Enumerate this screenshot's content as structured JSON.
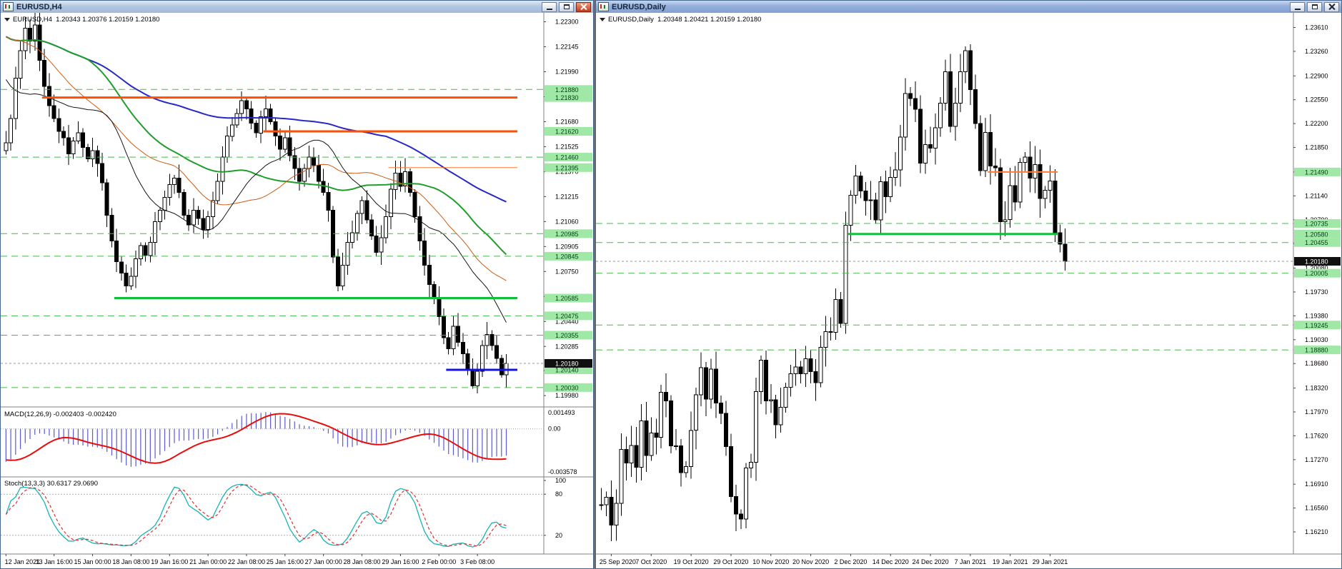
{
  "left_window": {
    "title": "EURUSD,H4",
    "header": "EURUSD,H4  1.20343 1.20376 1.20159 1.20180",
    "macd_label": "MACD(12,26,9) -0.002403 -0.002420",
    "stoch_label": "Stoch(13,3,3) 30.6317 29.0690"
  },
  "right_window": {
    "title": "EURUSD,Daily",
    "header": "EURUSD,Daily  1.20348 1.20421 1.20159 1.20180"
  },
  "colors": {
    "bull_candle": "#ffffff",
    "bear_candle": "#000000",
    "level_dashed_green": "#44bb44",
    "resistance_orange": "#ff4f02",
    "support_green": "#10c03a",
    "support_blue": "#1414e8",
    "badge_green_bg": "#9fe8a5",
    "current_badge_bg": "#101010"
  },
  "chart_data": [
    {
      "type": "candlestick",
      "symbol": "EURUSD",
      "timeframe": "H4",
      "title": "EURUSD,H4",
      "y_max": 1.2232,
      "y_min": 1.19945,
      "wick": 0.0007,
      "current_price": 1.2018,
      "current_label": "1.20180",
      "pre_closes": [
        1.2262,
        1.227,
        1.2277,
        1.2282,
        1.2286,
        1.2288,
        1.2285,
        1.228,
        1.2272,
        1.2265,
        1.2258,
        1.225,
        1.2242,
        1.2235,
        1.2228,
        1.2222,
        1.2215,
        1.2208,
        1.2202,
        1.2196,
        1.219,
        1.2183,
        1.2177,
        1.2172,
        1.2168,
        1.2163,
        1.2158,
        1.2154,
        1.2151,
        1.215
      ],
      "closes": [
        1.2155,
        1.217,
        1.2195,
        1.2212,
        1.2226,
        1.2218,
        1.2228,
        1.2206,
        1.219,
        1.2178,
        1.217,
        1.2162,
        1.2158,
        1.2148,
        1.2156,
        1.2161,
        1.2152,
        1.2145,
        1.215,
        1.2142,
        1.213,
        1.211,
        1.2094,
        1.2081,
        1.2074,
        1.2066,
        1.2072,
        1.2083,
        1.2091,
        1.2085,
        1.2093,
        1.2106,
        1.2113,
        1.2121,
        1.2129,
        1.2133,
        1.2124,
        1.211,
        1.2104,
        1.2113,
        1.2108,
        1.2101,
        1.2109,
        1.2119,
        1.2131,
        1.2146,
        1.2159,
        1.2166,
        1.2173,
        1.2181,
        1.2176,
        1.2167,
        1.2161,
        1.2171,
        1.2176,
        1.2168,
        1.2159,
        1.2151,
        1.2158,
        1.2147,
        1.2139,
        1.2131,
        1.2139,
        1.2146,
        1.2141,
        1.2131,
        1.2124,
        1.2113,
        1.2084,
        1.2066,
        1.2079,
        1.2093,
        1.2099,
        1.2111,
        1.2119,
        1.2107,
        1.2097,
        1.2087,
        1.2096,
        1.2109,
        1.2126,
        1.2136,
        1.2128,
        1.2137,
        1.2124,
        1.2109,
        1.2094,
        1.2079,
        1.2067,
        1.2059,
        1.2047,
        1.2034,
        1.2027,
        1.2041,
        1.2031,
        1.2024,
        1.2014,
        1.2004,
        1.2013,
        1.2029,
        1.2036,
        1.2029,
        1.2021,
        1.2011,
        1.2018
      ],
      "price_labels": [
        "1.22300",
        "1.22145",
        "1.21990",
        "1.21835",
        "1.21680",
        "1.21525",
        "1.21370",
        "1.21215",
        "1.21060",
        "1.20905",
        "1.20750",
        "1.20595",
        "1.20440",
        "1.20285",
        "1.20135",
        "1.19980"
      ],
      "time_labels": [
        {
          "t": "12 Jan 2021",
          "i": 0
        },
        {
          "t": "13 Jan 16:00",
          "i": 10
        },
        {
          "t": "15 Jan 00:00",
          "i": 18
        },
        {
          "t": "18 Jan 08:00",
          "i": 26
        },
        {
          "t": "19 Jan 16:00",
          "i": 34
        },
        {
          "t": "21 Jan 00:00",
          "i": 42
        },
        {
          "t": "22 Jan 08:00",
          "i": 50
        },
        {
          "t": "25 Jan 16:00",
          "i": 58
        },
        {
          "t": "27 Jan 00:00",
          "i": 66
        },
        {
          "t": "28 Jan 08:00",
          "i": 74
        },
        {
          "t": "29 Jan 16:00",
          "i": 82
        },
        {
          "t": "2 Feb 00:00",
          "i": 90
        },
        {
          "t": "3 Feb 08:00",
          "i": 98
        }
      ],
      "levels": [
        {
          "price": 1.2188,
          "style": "dashed",
          "color": "#44bb44",
          "width": 1,
          "full": true,
          "badge": "1.21880"
        },
        {
          "price": 1.2183,
          "style": "solid",
          "color": "#ff4f02",
          "width": 3,
          "from": 8,
          "badge": "1.21830"
        },
        {
          "price": 1.2162,
          "style": "solid",
          "color": "#ff4f02",
          "width": 3,
          "from": 54,
          "badge": "1.21620"
        },
        {
          "price": 1.2146,
          "style": "dashed",
          "color": "#44bb44",
          "width": 1,
          "full": true,
          "badge": "1.21460"
        },
        {
          "price": 1.21395,
          "style": "solid",
          "color": "#ff7b30",
          "width": 1,
          "from": 80,
          "badge": "1.21395"
        },
        {
          "price": 1.20985,
          "style": "dashed",
          "color": "#44bb44",
          "width": 1,
          "full": true,
          "badge": "1.20985"
        },
        {
          "price": 1.20845,
          "style": "dashed",
          "color": "#44bb44",
          "width": 1,
          "full": true,
          "badge": "1.20845"
        },
        {
          "price": 1.20585,
          "style": "solid",
          "color": "#10c03a",
          "width": 3,
          "from": 23,
          "badge": "1.20585"
        },
        {
          "price": 1.20475,
          "style": "dashed",
          "color": "#44bb44",
          "width": 1,
          "full": true,
          "badge": "1.20475"
        },
        {
          "price": 1.20355,
          "style": "dashed",
          "color": "#44bb44",
          "width": 1,
          "full": true,
          "badge": "1.20355"
        },
        {
          "price": 1.2014,
          "style": "solid",
          "color": "#1414e8",
          "width": 3,
          "from": 92,
          "badge": "1.20140"
        },
        {
          "price": 1.2003,
          "style": "dashed",
          "color": "#44bb44",
          "width": 1,
          "full": true,
          "badge": "1.20030"
        }
      ],
      "mas": [
        {
          "period": 110,
          "color": "#2828c8",
          "width": 2
        },
        {
          "period": 48,
          "color": "#1f9e2c",
          "width": 2
        },
        {
          "period": 34,
          "color": "#cc5c14",
          "width": 1
        },
        {
          "period": 21,
          "color": "#151515",
          "width": 1
        }
      ],
      "macd": {
        "fast": 12,
        "slow": 26,
        "signal": 9,
        "values_text": "-0.002403 -0.002420",
        "y_max": 0.001493,
        "y_min": -0.003578,
        "axis_labels": [
          "0.001493",
          "0.00",
          "-0.003578"
        ],
        "hist_color": "#5b5bd0",
        "signal_color": "#e80c0c"
      },
      "stoch": {
        "k": 13,
        "d": 3,
        "slowing": 3,
        "values_text": "30.6317 29.0690",
        "axis_labels": [
          "100",
          "80",
          "20"
        ],
        "level_lines": [
          80,
          20
        ],
        "k_color": "#17b3b3",
        "d_color": "#e03030"
      }
    },
    {
      "type": "candlestick",
      "symbol": "EURUSD",
      "timeframe": "Daily",
      "title": "EURUSD,Daily",
      "y_max": 1.2372,
      "y_min": 1.1598,
      "wick": 0.0024,
      "current_price": 1.2018,
      "current_label": "1.20180",
      "pre_closes": [],
      "closes": [
        1.1661,
        1.1672,
        1.1631,
        1.1663,
        1.1742,
        1.1722,
        1.1748,
        1.1716,
        1.1784,
        1.1733,
        1.1766,
        1.176,
        1.1826,
        1.1813,
        1.1747,
        1.1747,
        1.1708,
        1.1717,
        1.177,
        1.1822,
        1.1862,
        1.1816,
        1.186,
        1.181,
        1.1795,
        1.1746,
        1.1673,
        1.1647,
        1.164,
        1.1715,
        1.1723,
        1.1827,
        1.1873,
        1.1813,
        1.1815,
        1.1778,
        1.1804,
        1.1833,
        1.1853,
        1.1863,
        1.1853,
        1.1875,
        1.1856,
        1.184,
        1.1892,
        1.1915,
        1.1914,
        1.1962,
        1.1927,
        1.2071,
        1.2115,
        1.2143,
        1.2121,
        1.2107,
        1.2108,
        1.2079,
        1.2135,
        1.2113,
        1.2141,
        1.2152,
        1.22,
        1.2264,
        1.2257,
        1.2241,
        1.2162,
        1.2189,
        1.2184,
        1.2214,
        1.225,
        1.2296,
        1.2216,
        1.225,
        1.2296,
        1.2327,
        1.227,
        1.222,
        1.2151,
        1.2207,
        1.2158,
        1.2155,
        1.2076,
        1.2079,
        1.2129,
        1.2105,
        1.2163,
        1.2171,
        1.214,
        1.216,
        1.211,
        1.2122,
        1.2136,
        1.206,
        1.2043,
        1.2018
      ],
      "price_labels": [
        "1.23610",
        "1.23260",
        "1.22900",
        "1.22550",
        "1.22200",
        "1.21850",
        "1.21490",
        "1.21140",
        "1.20790",
        "1.20440",
        "1.20080",
        "1.19730",
        "1.19380",
        "1.19030",
        "1.18680",
        "1.18320",
        "1.17970",
        "1.17620",
        "1.17270",
        "1.16910",
        "1.16560",
        "1.16210"
      ],
      "time_labels": [
        {
          "t": "25 Sep 2020",
          "i": 2
        },
        {
          "t": "7 Oct 2020",
          "i": 10
        },
        {
          "t": "19 Oct 2020",
          "i": 18
        },
        {
          "t": "29 Oct 2020",
          "i": 26
        },
        {
          "t": "10 Nov 2020",
          "i": 34
        },
        {
          "t": "20 Nov 2020",
          "i": 42
        },
        {
          "t": "2 Dec 2020",
          "i": 50
        },
        {
          "t": "14 Dec 2020",
          "i": 58
        },
        {
          "t": "24 Dec 2020",
          "i": 66
        },
        {
          "t": "7 Jan 2021",
          "i": 74
        },
        {
          "t": "19 Jan 2021",
          "i": 82
        },
        {
          "t": "29 Jan 2021",
          "i": 90
        }
      ],
      "levels": [
        {
          "price": 1.2149,
          "style": "solid",
          "color": "#ff7b30",
          "width": 2,
          "from": 78,
          "to": 92,
          "badge": "1.21490"
        },
        {
          "price": 1.20735,
          "style": "dashed",
          "color": "#44bb44",
          "width": 1,
          "full": true,
          "badge": "1.20735"
        },
        {
          "price": 1.2058,
          "style": "solid",
          "color": "#10c03a",
          "width": 3,
          "from": 50,
          "to": 92,
          "badge": "1.20580"
        },
        {
          "price": 1.20455,
          "style": "dashed",
          "color": "#44bb44",
          "width": 1,
          "full": true,
          "badge": "1.20455"
        },
        {
          "price": 1.20005,
          "style": "dashed",
          "color": "#44bb44",
          "width": 1,
          "full": true,
          "badge": "1.20005"
        },
        {
          "price": 1.19245,
          "style": "dashed",
          "color": "#44bb44",
          "width": 1,
          "full": true,
          "badge": "1.19245"
        },
        {
          "price": 1.1888,
          "style": "dashed",
          "color": "#44bb44",
          "width": 1,
          "full": true,
          "badge": "1.18880"
        }
      ],
      "mas": []
    }
  ]
}
